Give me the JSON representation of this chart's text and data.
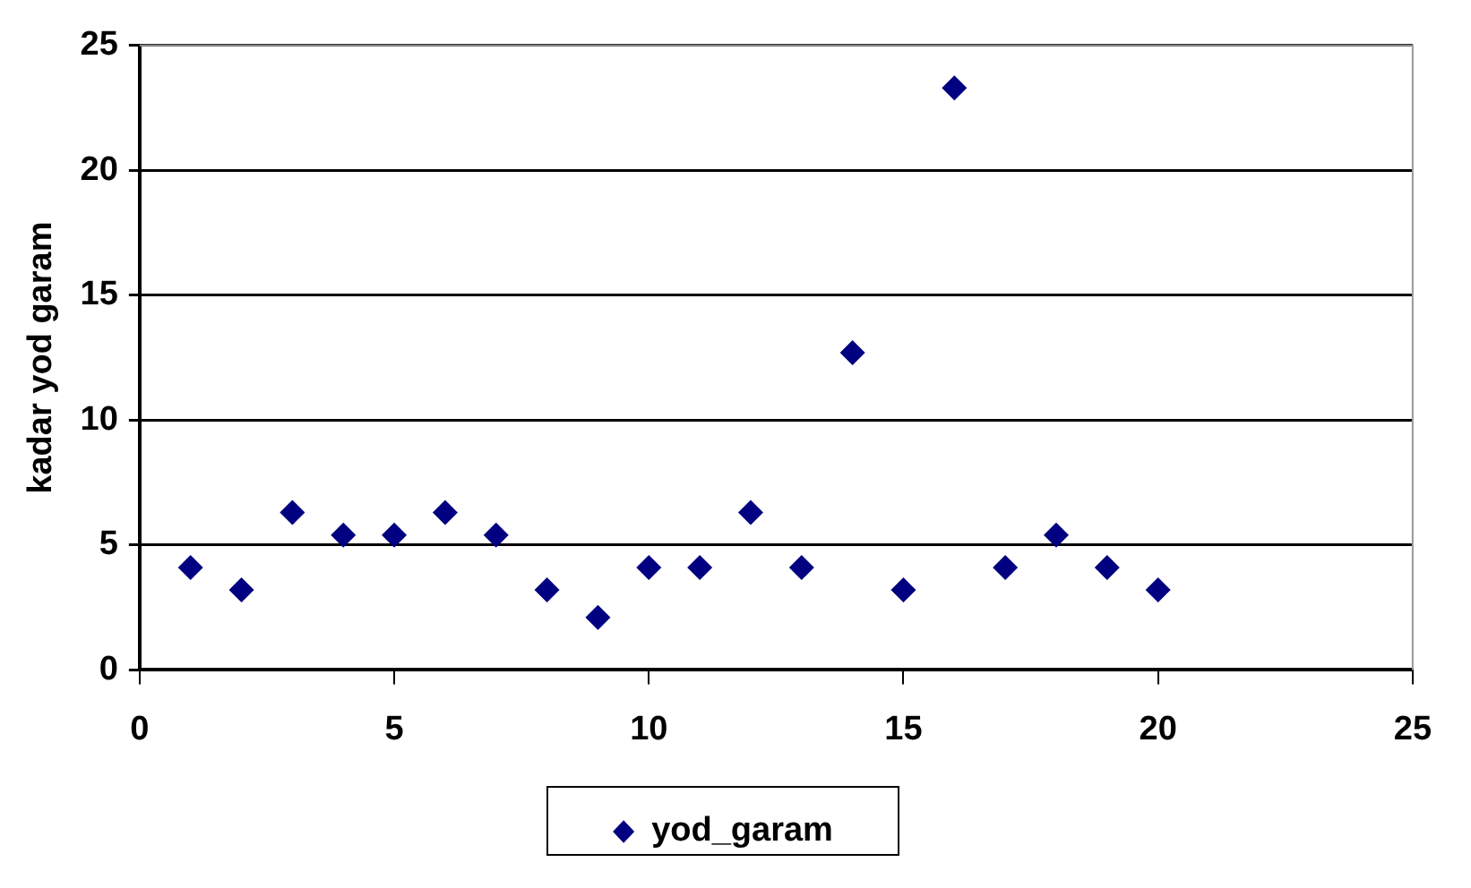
{
  "chart_data": {
    "type": "scatter",
    "ylabel": "kadar yod garam",
    "x": [
      1,
      2,
      3,
      4,
      5,
      6,
      7,
      8,
      9,
      10,
      11,
      12,
      13,
      14,
      15,
      16,
      17,
      18,
      19,
      20
    ],
    "series": [
      {
        "name": "yod_garam",
        "color": "#000080",
        "values": [
          4.1,
          3.2,
          6.3,
          5.4,
          5.4,
          6.3,
          5.4,
          3.2,
          2.1,
          4.1,
          4.1,
          6.3,
          4.1,
          12.7,
          3.2,
          23.3,
          4.1,
          5.4,
          4.1,
          3.2
        ]
      }
    ],
    "xlim": [
      0,
      25
    ],
    "xticks": [
      0,
      5,
      10,
      15,
      20,
      25
    ],
    "ylim": [
      0,
      25
    ],
    "yticks": [
      0,
      5,
      10,
      15,
      20,
      25
    ],
    "grid": "y",
    "legend": "bottom",
    "marker": "diamond"
  }
}
